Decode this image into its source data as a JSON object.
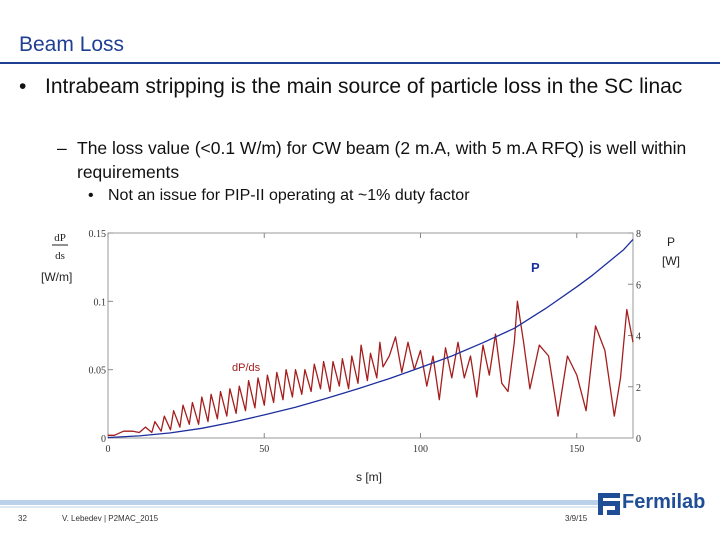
{
  "slide": {
    "title": "Beam Loss",
    "bullet1": "Intrabeam stripping is the main source of particle loss in the SC linac",
    "bullet1_marker": "•",
    "bullet2": "The loss value (<0.1 W/m) for CW beam (2 m.A, with 5 m.A RFQ) is well within requirements",
    "bullet2_marker": "–",
    "bullet3": "Not an issue for PIP-II operating at ~1% duty factor",
    "bullet3_marker": "•"
  },
  "footer": {
    "page": "32",
    "author": "V. Lebedev | P2MAC_2015",
    "date": "3/9/15",
    "logo_text": "Fermilab"
  },
  "colors": {
    "title": "#1f3f93",
    "loss_curve": "#a51e1e",
    "power_curve": "#1d2f9e",
    "footer_bar": "#b9d2ea"
  },
  "chart_data": {
    "type": "line",
    "xlabel": "s [m]",
    "ylabel_left_top": "dP",
    "ylabel_left_bottom": "ds",
    "ylabel_left_unit": "[W/m]",
    "ylabel_right": "P",
    "ylabel_right_unit": "[W]",
    "xlim": [
      0,
      168
    ],
    "ylim_left": [
      0,
      0.15
    ],
    "ylim_right": [
      0,
      8
    ],
    "x_ticks": [
      "0",
      "50",
      "100",
      "150"
    ],
    "x_tick_values": [
      0,
      50,
      100,
      150
    ],
    "y_left_ticks": [
      "0",
      "0.05",
      "0.1",
      "0.15"
    ],
    "y_left_tick_values": [
      0,
      0.05,
      0.1,
      0.15
    ],
    "y_right_ticks": [
      "2",
      "4",
      "6",
      "8"
    ],
    "y_right_tick_values": [
      2,
      4,
      6,
      8
    ],
    "y_right_zero_label": "0",
    "series": [
      {
        "name": "dP/ds",
        "label": "dP/ds",
        "axis": "left",
        "x": [
          0,
          2,
          5,
          8,
          10,
          12,
          14,
          15,
          17,
          18,
          20,
          21,
          23,
          24,
          26,
          27,
          29,
          30,
          32,
          33,
          35,
          36,
          38,
          39,
          41,
          42,
          44,
          45,
          47,
          48,
          50,
          51,
          53,
          54,
          56,
          57,
          59,
          60,
          62,
          63,
          65,
          66,
          68,
          69,
          71,
          72,
          74,
          75,
          77,
          78,
          80,
          81,
          83,
          84,
          86,
          87,
          88,
          90,
          92,
          94,
          96,
          98,
          100,
          102,
          104,
          106,
          108,
          110,
          112,
          114,
          116,
          118,
          120,
          122,
          124,
          126,
          128,
          130,
          131,
          133,
          135,
          138,
          141,
          144,
          147,
          150,
          153,
          156,
          159,
          162,
          164,
          166,
          168
        ],
        "values": [
          0.002,
          0.002,
          0.005,
          0.005,
          0.004,
          0.008,
          0.004,
          0.012,
          0.005,
          0.016,
          0.006,
          0.02,
          0.008,
          0.024,
          0.01,
          0.026,
          0.01,
          0.03,
          0.012,
          0.032,
          0.014,
          0.034,
          0.016,
          0.036,
          0.018,
          0.038,
          0.02,
          0.042,
          0.022,
          0.044,
          0.024,
          0.046,
          0.026,
          0.048,
          0.028,
          0.05,
          0.03,
          0.05,
          0.032,
          0.05,
          0.034,
          0.054,
          0.036,
          0.056,
          0.034,
          0.056,
          0.038,
          0.058,
          0.036,
          0.06,
          0.04,
          0.068,
          0.042,
          0.062,
          0.044,
          0.07,
          0.052,
          0.06,
          0.074,
          0.048,
          0.07,
          0.05,
          0.064,
          0.038,
          0.06,
          0.028,
          0.066,
          0.044,
          0.07,
          0.044,
          0.06,
          0.03,
          0.068,
          0.046,
          0.076,
          0.04,
          0.034,
          0.07,
          0.1,
          0.07,
          0.036,
          0.068,
          0.06,
          0.016,
          0.06,
          0.046,
          0.02,
          0.082,
          0.064,
          0.016,
          0.044,
          0.094,
          0.07
        ]
      },
      {
        "name": "P",
        "label": "P",
        "axis": "right",
        "x": [
          0,
          10,
          20,
          30,
          40,
          50,
          60,
          70,
          80,
          90,
          100,
          110,
          120,
          130,
          140,
          150,
          155,
          160,
          165,
          168
        ],
        "values": [
          0.02,
          0.08,
          0.2,
          0.38,
          0.62,
          0.9,
          1.2,
          1.55,
          1.92,
          2.32,
          2.75,
          3.2,
          3.72,
          4.28,
          5.05,
          5.9,
          6.35,
          6.85,
          7.35,
          7.75
        ]
      }
    ]
  }
}
